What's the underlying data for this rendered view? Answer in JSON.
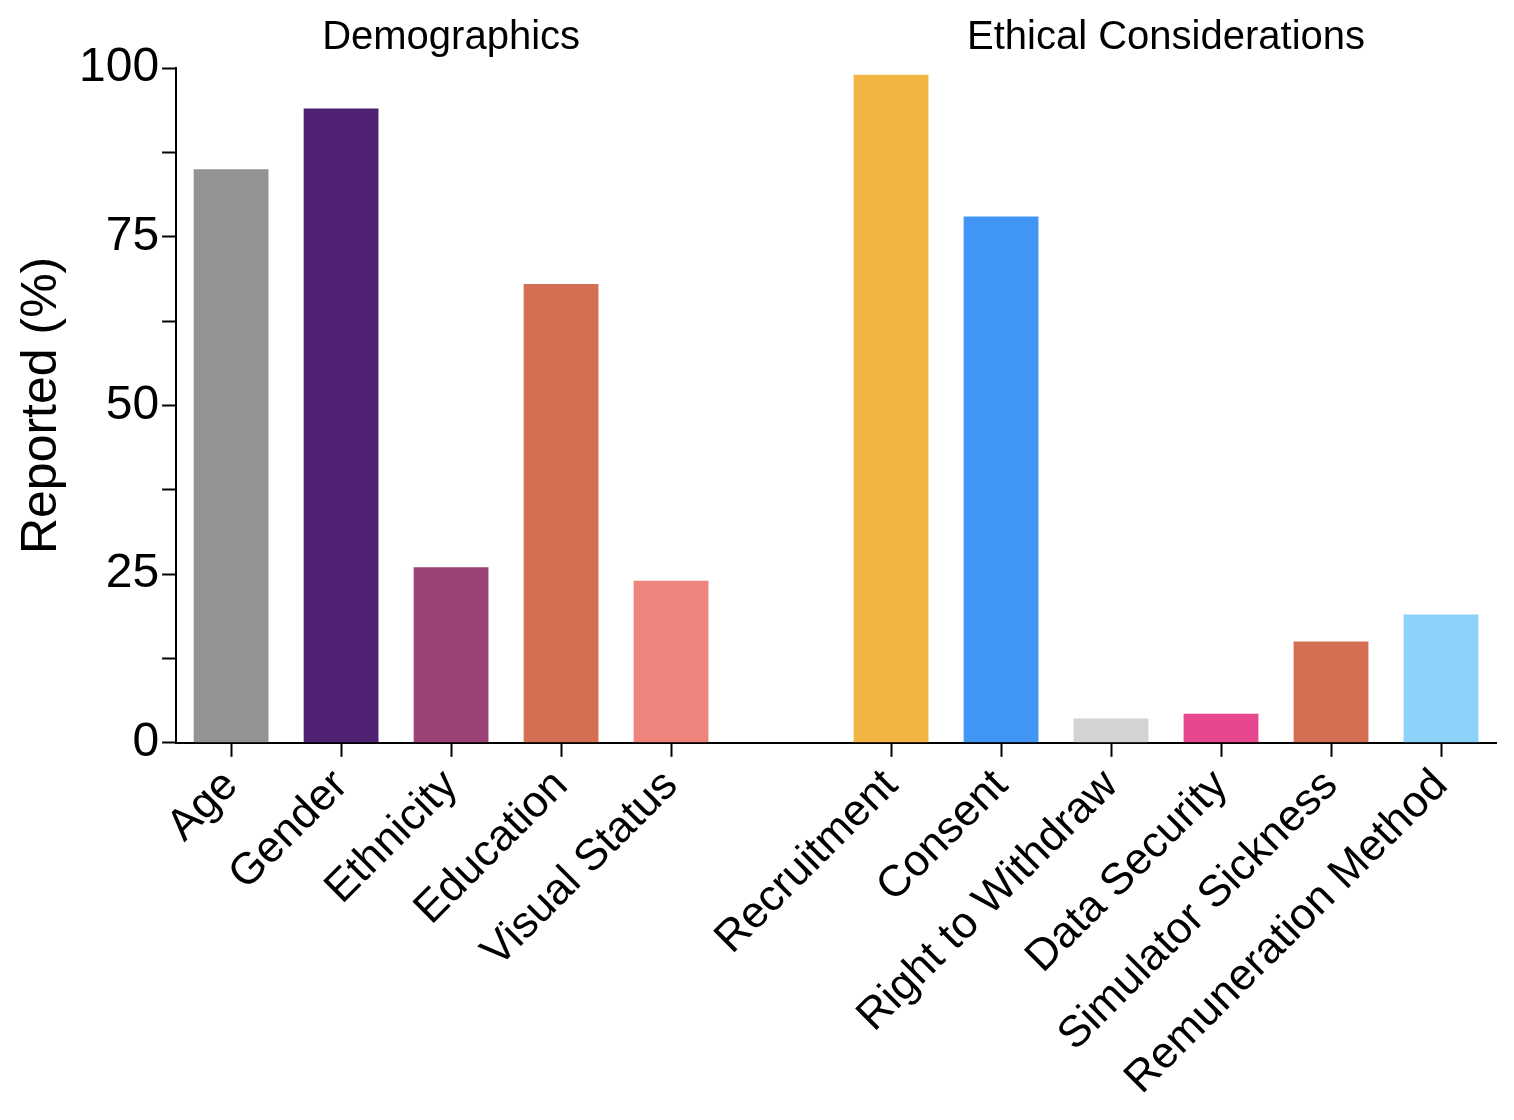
{
  "chart_data": {
    "type": "bar",
    "ylabel": "Reported (%)",
    "annotations": [
      "Demographics",
      "Ethical Considerations"
    ],
    "categories": [
      "Age",
      "Gender",
      "Ethnicity",
      "Education",
      "Visual Status",
      null,
      "Recruitment",
      "Consent",
      "Right to Withdraw",
      "Data Security",
      "Simulator Sickness",
      "Remuneration Method"
    ],
    "values": [
      85,
      94,
      26,
      68,
      24,
      null,
      99,
      78,
      3.6,
      4.3,
      15,
      19
    ],
    "colors": [
      "#939393",
      "#4f2173",
      "#9b4377",
      "#d56f53",
      "#ee847b",
      "#ffffff",
      "#f2b443",
      "#4196f5",
      "#d3d3d3",
      "#e8478f",
      "#d56f53",
      "#8dd2f9"
    ],
    "ylim": [
      0,
      100
    ],
    "yticks": [
      0,
      {
        "value": 12.5,
        "label": null
      },
      25,
      {
        "value": 37.5,
        "label": null
      },
      50,
      {
        "value": 62.5,
        "label": null
      },
      75,
      {
        "value": 87.5,
        "label": null
      },
      100
    ],
    "grid": false,
    "legend": false
  }
}
